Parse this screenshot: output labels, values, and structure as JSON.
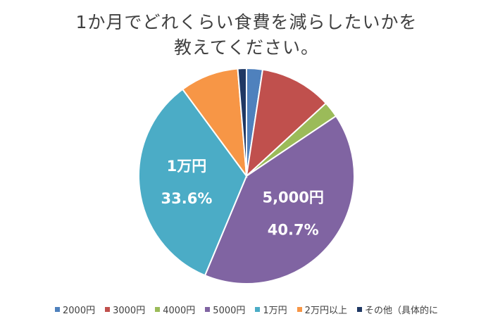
{
  "chart_data": {
    "type": "pie",
    "title": [
      "1か月でどれくらい食費を減らしたいかを",
      "教えてください。"
    ],
    "categories": [
      "2000円",
      "3000円",
      "4000円",
      "5000円",
      "1万円",
      "2万円以上",
      "その他（具体的に"
    ],
    "values": [
      2.4,
      10.8,
      2.4,
      40.7,
      33.6,
      8.8,
      1.3
    ],
    "colors": [
      "#4f81bd",
      "#c0504d",
      "#9bbb59",
      "#8064a2",
      "#4bacc6",
      "#f79646",
      "#1f3864"
    ],
    "data_labels": [
      {
        "index": 3,
        "lines": [
          "5,000円",
          "40.7%"
        ]
      },
      {
        "index": 4,
        "lines": [
          "1万円",
          "33.6%"
        ]
      }
    ],
    "legend_position": "bottom"
  }
}
